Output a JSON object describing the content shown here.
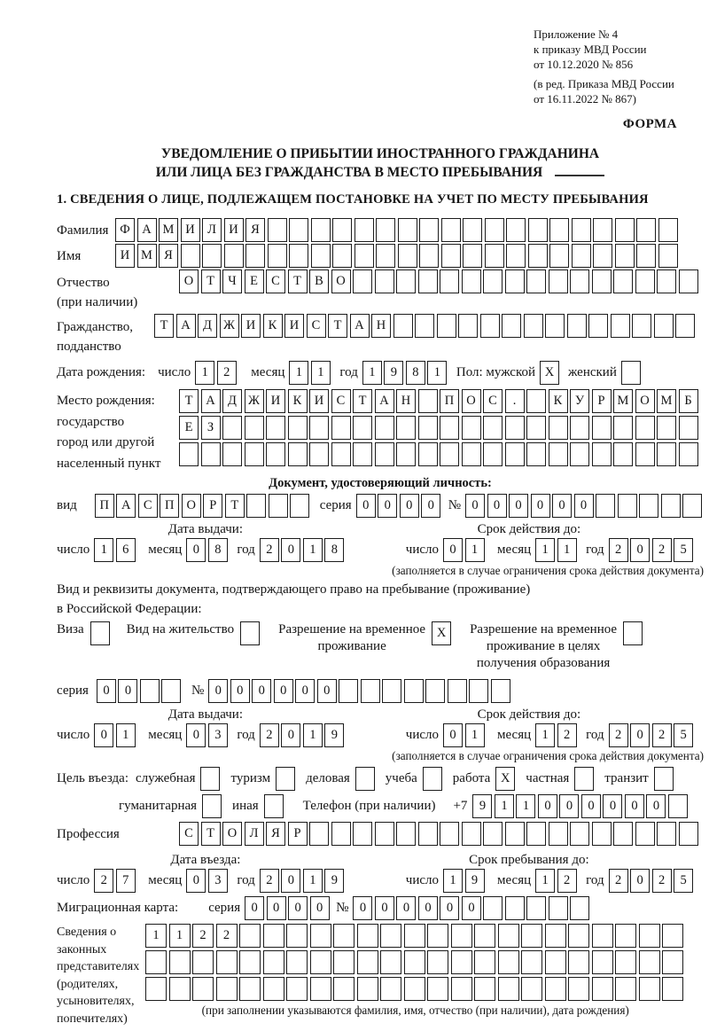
{
  "header": {
    "appendix_lines": [
      "Приложение № 4",
      "к приказу МВД России",
      "от 10.12.2020 № 856"
    ],
    "revision_lines": [
      "(в ред. Приказа МВД России",
      "от 16.11.2022 № 867)"
    ]
  },
  "form_label": "ФОРМА",
  "title": {
    "line1": "УВЕДОМЛЕНИЕ О ПРИБЫТИИ ИНОСТРАННОГО ГРАЖДАНИНА",
    "line2": "ИЛИ ЛИЦА БЕЗ ГРАЖДАНСТВА В МЕСТО ПРЕБЫВАНИЯ"
  },
  "section1_title": "1. СВЕДЕНИЯ О ЛИЦЕ, ПОДЛЕЖАЩЕМ ПОСТАНОВКЕ НА УЧЕТ ПО МЕСТУ ПРЕБЫВАНИЯ",
  "labels": {
    "day": "число",
    "month": "месяц",
    "year": "год",
    "series": "серия",
    "number": "№"
  },
  "surname": {
    "label": "Фамилия",
    "boxes": {
      "value": "ФАМИЛИЯ",
      "total": 26
    }
  },
  "name": {
    "label": "Имя",
    "boxes": {
      "value": "ИМЯ",
      "total": 26
    }
  },
  "patronymic": {
    "label1": "Отчество",
    "label2": "(при наличии)",
    "boxes": {
      "value": "ОТЧЕСТВО",
      "total": 24
    }
  },
  "citizenship": {
    "label1": "Гражданство,",
    "label2": "подданство",
    "boxes": {
      "value": "ТАДЖИКИСТАН",
      "total": 25
    }
  },
  "birth": {
    "label": "Дата рождения:",
    "day": {
      "value": "12",
      "total": 2
    },
    "month": {
      "value": "11",
      "total": 2
    },
    "year": {
      "value": "1981",
      "total": 4
    },
    "sex_label": "Пол: мужской",
    "male": true,
    "female_label": "женский",
    "female": false
  },
  "birth_place": {
    "label1": "Место рождения:",
    "label2": "государство",
    "label3": "город или другой",
    "label4": "населенный пункт",
    "row1": {
      "value": "ТАДЖИКИСТАН ПОС. КУРМОМБ",
      "total": 24
    },
    "row2": {
      "value": "ЕЗ",
      "total": 24
    },
    "row3": {
      "value": "",
      "total": 24
    }
  },
  "identity_doc": {
    "header": "Документ, удостоверяющий личность:",
    "kind_label": "вид",
    "kind": {
      "value": "ПАСПОРТ",
      "total": 10
    },
    "series": {
      "value": "0000",
      "total": 4
    },
    "number": {
      "value": "000000",
      "total": 11
    },
    "issued_header": "Дата выдачи:",
    "issued": {
      "day": {
        "value": "16",
        "total": 2
      },
      "month": {
        "value": "08",
        "total": 2
      },
      "year": {
        "value": "2018",
        "total": 4
      }
    },
    "valid_header": "Срок действия до:",
    "valid": {
      "day": {
        "value": "01",
        "total": 2
      },
      "month": {
        "value": "11",
        "total": 2
      },
      "year": {
        "value": "2025",
        "total": 4
      }
    },
    "note": "(заполняется в случае ограничения срока действия документа)"
  },
  "residence": {
    "line1": "Вид и реквизиты документа, подтверждающего право на пребывание (проживание)",
    "line2": "в Российской Федерации:",
    "visa_label": "Виза",
    "visa": false,
    "permit_label": "Вид на жительство",
    "permit": false,
    "rvp_lines": [
      "Разрешение на временное",
      "проживание"
    ],
    "rvp": true,
    "rvp_edu_lines": [
      "Разрешение на временное",
      "проживание в целях",
      "получения образования"
    ],
    "rvp_edu": false,
    "series": {
      "value": "00",
      "total": 4
    },
    "number": {
      "value": "000000",
      "total": 14
    },
    "issued_header": "Дата выдачи:",
    "issued": {
      "day": {
        "value": "01",
        "total": 2
      },
      "month": {
        "value": "03",
        "total": 2
      },
      "year": {
        "value": "2019",
        "total": 4
      }
    },
    "valid_header": "Срок действия до:",
    "valid": {
      "day": {
        "value": "01",
        "total": 2
      },
      "month": {
        "value": "12",
        "total": 2
      },
      "year": {
        "value": "2025",
        "total": 4
      }
    },
    "note": "(заполняется в случае ограничения срока действия документа)"
  },
  "purpose": {
    "label": "Цель въезда:",
    "options1": [
      {
        "label": "служебная",
        "checked": false
      },
      {
        "label": "туризм",
        "checked": false
      },
      {
        "label": "деловая",
        "checked": false
      },
      {
        "label": "учеба",
        "checked": false
      },
      {
        "label": "работа",
        "checked": true
      },
      {
        "label": "частная",
        "checked": false
      },
      {
        "label": "транзит",
        "checked": false
      }
    ],
    "options2": [
      {
        "label": "гуманитарная",
        "checked": false
      },
      {
        "label": "иная",
        "checked": false
      }
    ],
    "phone_label": "Телефон (при наличии)",
    "phone_prefix": "+7",
    "phone": {
      "value": "911000000",
      "total": 10
    }
  },
  "profession": {
    "label": "Профессия",
    "boxes": {
      "value": "СТОЛЯР",
      "total": 24
    }
  },
  "entry": {
    "entry_header": "Дата въезда:",
    "entry_date": {
      "day": {
        "value": "27",
        "total": 2
      },
      "month": {
        "value": "03",
        "total": 2
      },
      "year": {
        "value": "2019",
        "total": 4
      }
    },
    "stay_header": "Срок пребывания до:",
    "stay_date": {
      "day": {
        "value": "19",
        "total": 2
      },
      "month": {
        "value": "12",
        "total": 2
      },
      "year": {
        "value": "2025",
        "total": 4
      }
    }
  },
  "migration_card": {
    "label": "Миграционная карта:",
    "series": {
      "value": "0000",
      "total": 4
    },
    "number": {
      "value": "000000",
      "total": 11
    }
  },
  "representatives": {
    "label_lines": [
      "Сведения о",
      "законных",
      "представителях",
      "(родителях,",
      "усыновителях,",
      "попечителях)"
    ],
    "row1": {
      "value": "1122",
      "total": 23
    },
    "row2": {
      "value": "",
      "total": 23
    },
    "row3": {
      "value": "",
      "total": 23
    },
    "note": "(при заполнении указываются фамилия, имя, отчество (при наличии), дата рождения)"
  }
}
